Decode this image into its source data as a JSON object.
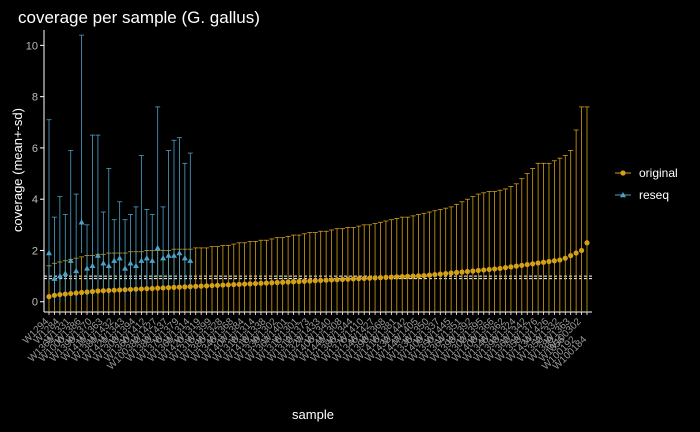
{
  "chart_data": {
    "type": "scatter",
    "title": "coverage per sample (G. gallus)",
    "xlabel": "sample",
    "ylabel": "coverage (mean+-sd)",
    "ylim": [
      -0.4,
      10.6
    ],
    "yticks": [
      0,
      2,
      4,
      6,
      8,
      10
    ],
    "hlines": [
      0.9,
      1.0
    ],
    "legend_position": "right",
    "colors": {
      "original": "#d4a017",
      "reseq": "#4aa3c7"
    },
    "x": [
      "W1284",
      "W1361",
      "W1386",
      "W1294",
      "W1439",
      "W1363",
      "W1447",
      "W1431",
      "W1446",
      "W1411",
      "W1413",
      "W1405",
      "W1438",
      "W1350",
      "W1338",
      "W1370",
      "W1421",
      "W1423",
      "W1366",
      "W1407",
      "W1372",
      "W1340",
      "W1327",
      "W1301",
      "W1369",
      "W1432",
      "W1341",
      "W1351",
      "W1443",
      "W1356",
      "W1425",
      "W1343",
      "W1430",
      "W1335",
      "W1362",
      "W1394",
      "W1312",
      "W1426",
      "W1321",
      "W1440",
      "W1304",
      "W1358",
      "W1359",
      "W1437",
      "W1313",
      "W1322",
      "W1402",
      "W1395",
      "W1398",
      "W1324",
      "W1345",
      "W1406",
      "W1380",
      "W1433",
      "W1354",
      "W1336",
      "W1371",
      "W1393",
      "W1403",
      "W1429",
      "W1378",
      "W1308",
      "W1376",
      "W1420",
      "W1344",
      "W1412",
      "W1427",
      "W1399",
      "W1410",
      "W1319",
      "W1418",
      "W1428",
      "W1414",
      "W1368",
      "W1315",
      "W1367",
      "W1382",
      "W1326",
      "W1416",
      "W1360",
      "W1383",
      "W1309",
      "W1348",
      "W1379",
      "W1397",
      "W1346",
      "W1352",
      "W1408",
      "W1357",
      "W1442",
      "W1381",
      "W1385",
      "W1325",
      "W1436",
      "W1355",
      "W1347",
      "W1320",
      "W1400",
      "W1406",
      "W1441",
      "W1303",
      "W1387",
      "W1357",
      "W100382"
    ],
    "xticks_shown": [
      "W1294",
      "W1361",
      "W1284",
      "W1000",
      "W1331",
      "W1399",
      "W1386",
      "W1411",
      "W1370",
      "W1381",
      "W1363",
      "W1421",
      "W1432",
      "W1303",
      "W1343",
      "W1360",
      "W1394",
      "W100382",
      "W1412",
      "W1383",
      "W1427",
      "W1376",
      "W1437",
      "W1361",
      "W1379",
      "W1420",
      "W1314",
      "W1315",
      "W1319",
      "W1385",
      "W1399",
      "W1346",
      "W1328",
      "W1407",
      "W1368",
      "W1318",
      "W1384",
      "W1418",
      "W1314",
      "W1339",
      "W1338",
      "W1367",
      "W1302",
      "W1315",
      "W1401",
      "W1312",
      "W1301",
      "W1327",
      "W1373",
      "W1406",
      "W1433",
      "W1441",
      "W1340",
      "W1386",
      "W1308",
      "W1376",
      "W1344",
      "W1346",
      "W1410",
      "W1398",
      "W1427",
      "W1416",
      "W1368",
      "W1432",
      "W1381",
      "W1447",
      "W1442",
      "W1335",
      "W1405",
      "W1409",
      "W1350",
      "W1350",
      "W1337",
      "W1364",
      "W1445",
      "W1393",
      "W1351",
      "W1302",
      "W1392",
      "W1408",
      "W1395",
      "W1345",
      "W1366",
      "W1393",
      "W1362",
      "W1362",
      "W1324",
      "W1353",
      "W1342",
      "W1434",
      "W1376",
      "W1352",
      "W1426",
      "W1389",
      "W1332",
      "W1356",
      "W1363",
      "W100192",
      "W100302",
      "W100184"
    ],
    "series": [
      {
        "name": "original",
        "mean": [
          0.2,
          0.25,
          0.28,
          0.3,
          0.32,
          0.34,
          0.36,
          0.38,
          0.4,
          0.42,
          0.43,
          0.44,
          0.45,
          0.46,
          0.47,
          0.48,
          0.49,
          0.5,
          0.51,
          0.52,
          0.53,
          0.54,
          0.55,
          0.56,
          0.57,
          0.58,
          0.59,
          0.6,
          0.61,
          0.62,
          0.63,
          0.64,
          0.65,
          0.66,
          0.67,
          0.68,
          0.69,
          0.7,
          0.71,
          0.72,
          0.73,
          0.74,
          0.75,
          0.76,
          0.77,
          0.78,
          0.79,
          0.8,
          0.81,
          0.82,
          0.83,
          0.84,
          0.85,
          0.86,
          0.87,
          0.88,
          0.89,
          0.9,
          0.91,
          0.92,
          0.93,
          0.94,
          0.95,
          0.96,
          0.97,
          0.98,
          0.99,
          1.0,
          1.01,
          1.02,
          1.04,
          1.06,
          1.08,
          1.1,
          1.12,
          1.14,
          1.16,
          1.18,
          1.2,
          1.22,
          1.24,
          1.26,
          1.28,
          1.3,
          1.33,
          1.36,
          1.39,
          1.42,
          1.45,
          1.48,
          1.51,
          1.54,
          1.57,
          1.6,
          1.63,
          1.7,
          1.8,
          1.9,
          2.0,
          2.3
        ],
        "upper": [
          1.4,
          1.5,
          1.55,
          1.6,
          1.65,
          1.7,
          1.75,
          1.8,
          1.8,
          1.85,
          1.85,
          1.9,
          1.9,
          1.9,
          1.9,
          1.95,
          1.95,
          1.95,
          2.0,
          2.0,
          2.0,
          2.0,
          2.0,
          2.05,
          2.05,
          2.05,
          2.05,
          2.1,
          2.1,
          2.1,
          2.15,
          2.15,
          2.2,
          2.2,
          2.25,
          2.3,
          2.3,
          2.35,
          2.35,
          2.4,
          2.4,
          2.45,
          2.5,
          2.5,
          2.55,
          2.6,
          2.6,
          2.65,
          2.7,
          2.7,
          2.75,
          2.75,
          2.8,
          2.85,
          2.85,
          2.9,
          2.9,
          2.95,
          3.0,
          3.0,
          3.05,
          3.1,
          3.15,
          3.2,
          3.25,
          3.3,
          3.3,
          3.35,
          3.4,
          3.45,
          3.5,
          3.55,
          3.6,
          3.65,
          3.7,
          3.8,
          3.9,
          4.0,
          4.1,
          4.2,
          4.25,
          4.3,
          4.3,
          4.35,
          4.4,
          4.5,
          4.6,
          4.8,
          5.0,
          5.2,
          5.4,
          5.4,
          5.4,
          5.5,
          5.6,
          5.7,
          5.9,
          6.7,
          7.6,
          7.6
        ]
      },
      {
        "name": "reseq",
        "mean": [
          1.9,
          0.9,
          1.0,
          1.1,
          1.6,
          1.2,
          3.1,
          1.3,
          1.4,
          1.8,
          1.5,
          1.4,
          1.6,
          1.7,
          1.3,
          1.5,
          1.4,
          1.6,
          1.7,
          1.6,
          2.1,
          1.7,
          1.8,
          1.8,
          1.9,
          1.7,
          1.6
        ],
        "upper": [
          7.1,
          3.3,
          4.1,
          3.4,
          5.9,
          4.2,
          10.4,
          3.0,
          6.5,
          6.5,
          3.5,
          5.2,
          3.2,
          3.9,
          3.2,
          3.4,
          3.7,
          5.7,
          3.6,
          3.4,
          7.6,
          3.7,
          5.9,
          6.3,
          6.4,
          5.4,
          5.8
        ]
      }
    ]
  }
}
